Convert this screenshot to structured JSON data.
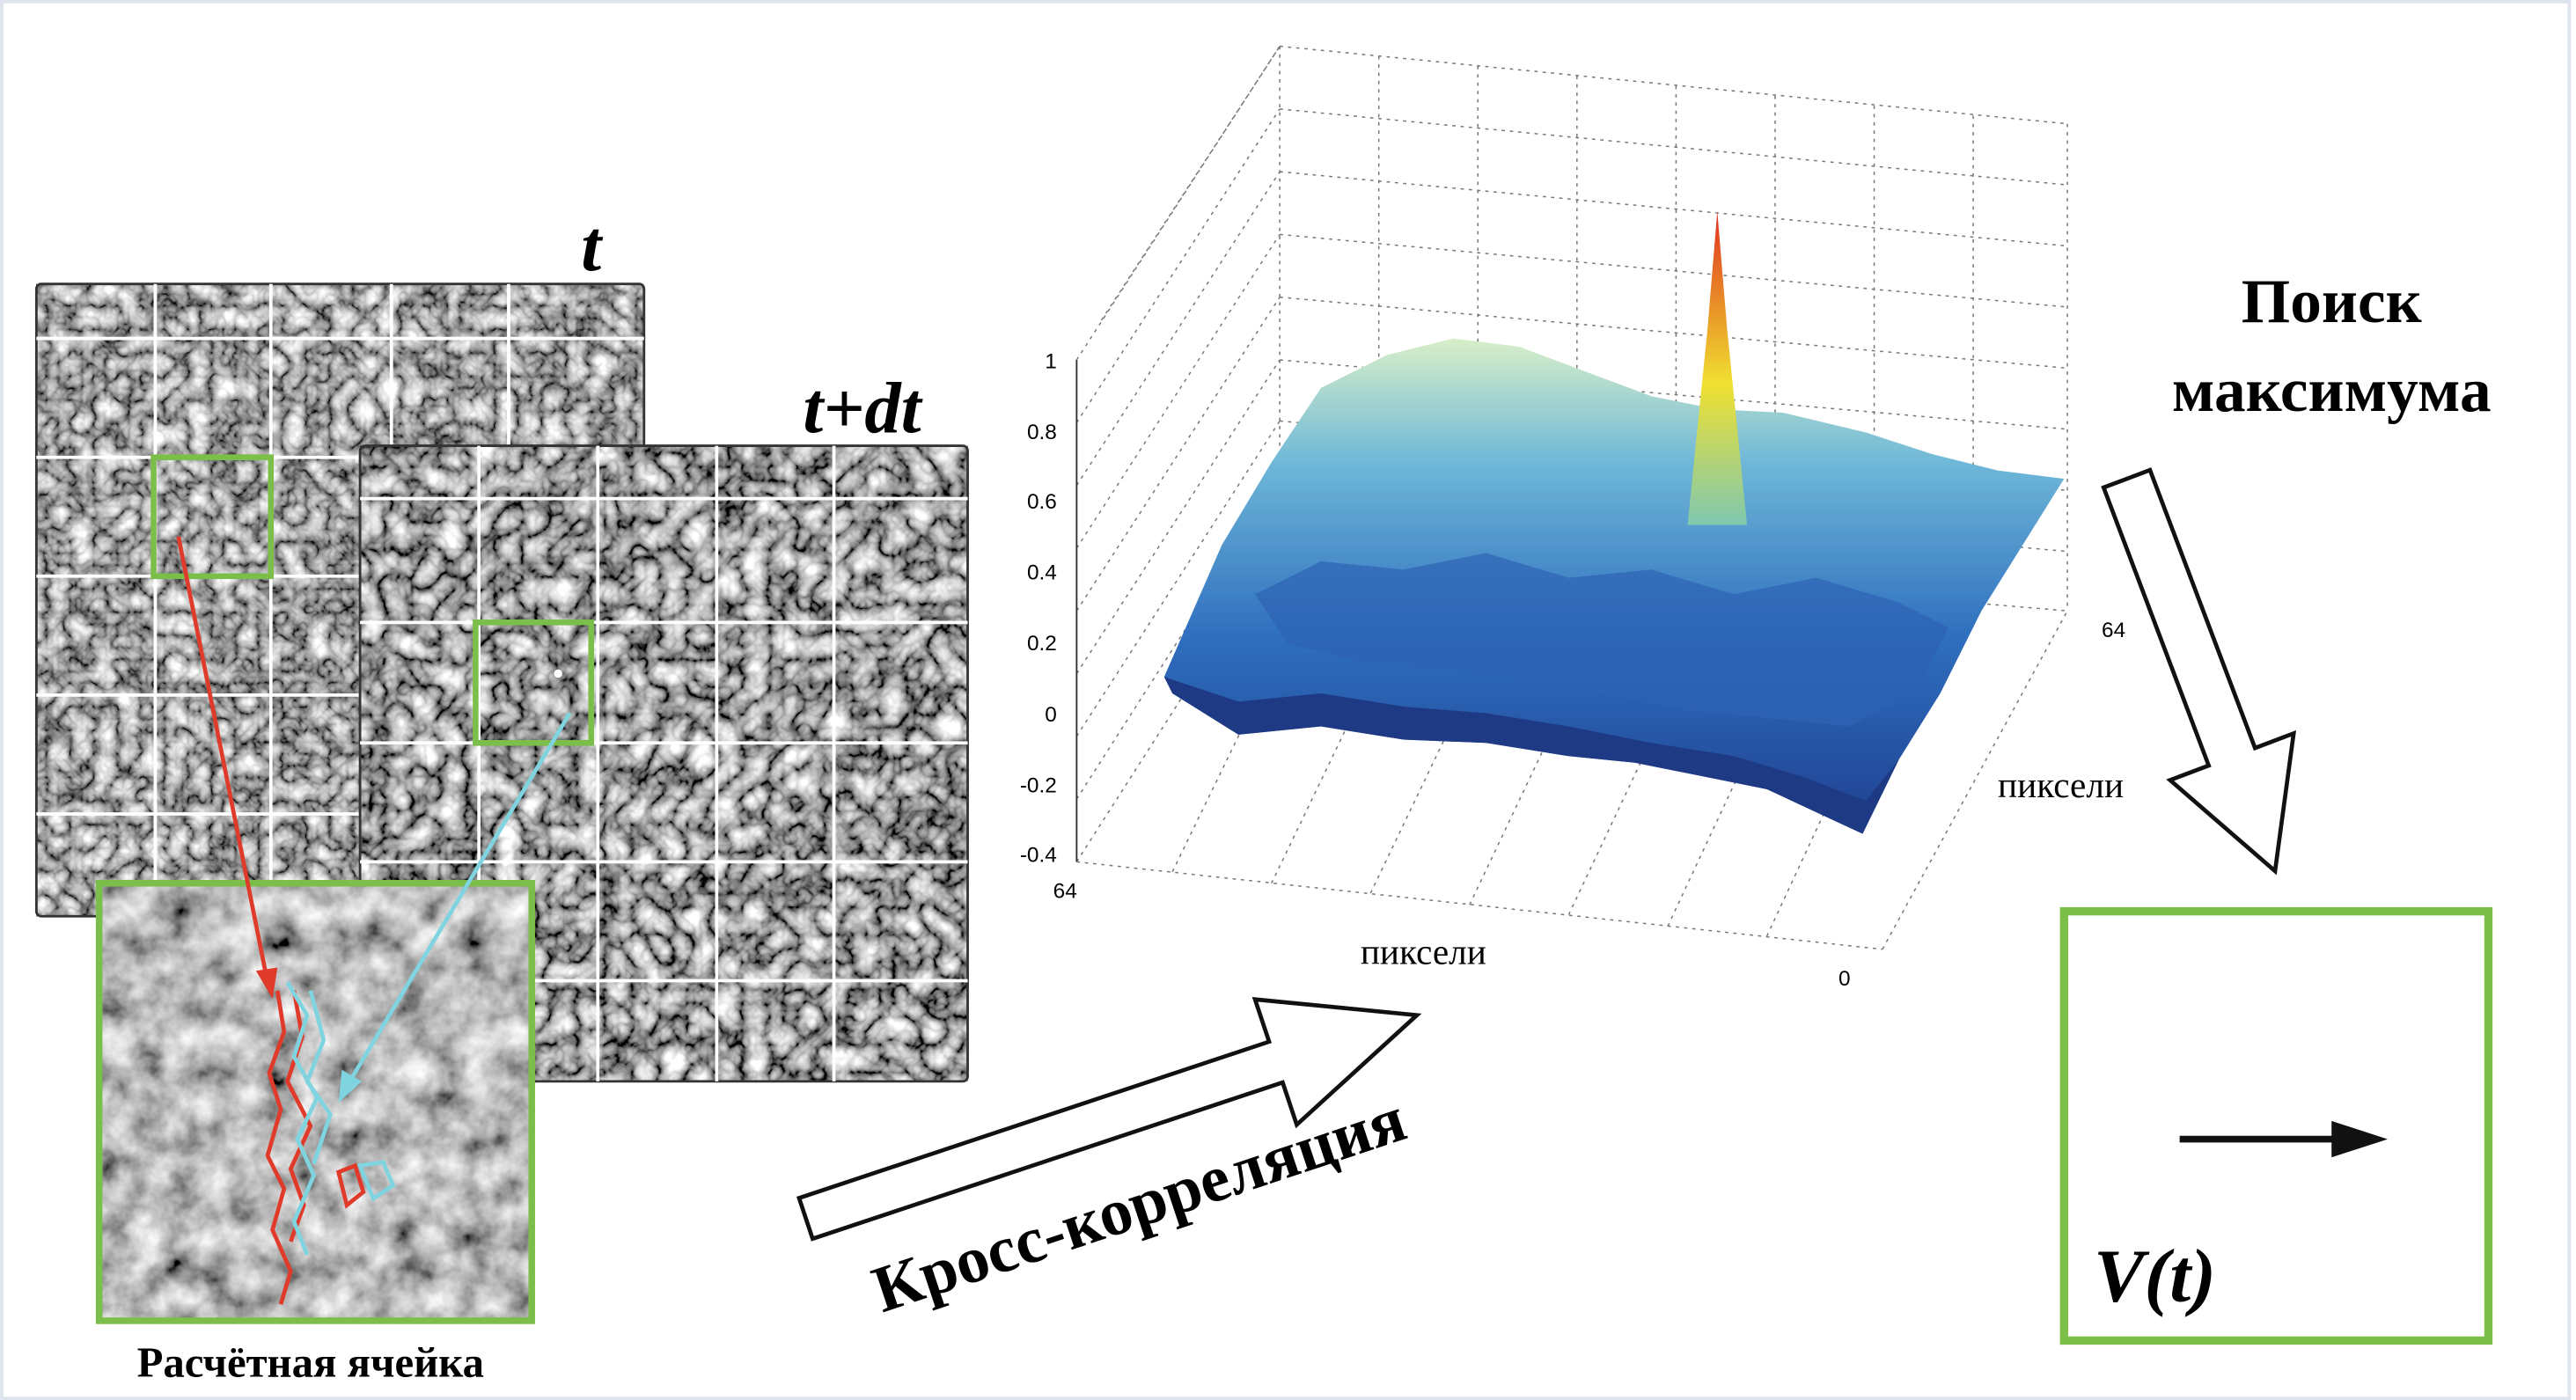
{
  "labels": {
    "frame_t": "t",
    "frame_t_dt": "t+dt",
    "cell": "Расчётная ячейка",
    "cross_correlation": "Кросс-корреляция",
    "search": [
      "Поиск",
      "максимума"
    ],
    "velocity": "V(t)"
  },
  "plot": {
    "z_ticks": [
      "1",
      "0.8",
      "0.6",
      "0.4",
      "0.2",
      "0",
      "-0.2",
      "-0.4"
    ],
    "x_axis": {
      "label": "пиксели",
      "start": "64",
      "end": "0"
    },
    "y_axis": {
      "label": "пиксели",
      "end": "64"
    }
  }
}
